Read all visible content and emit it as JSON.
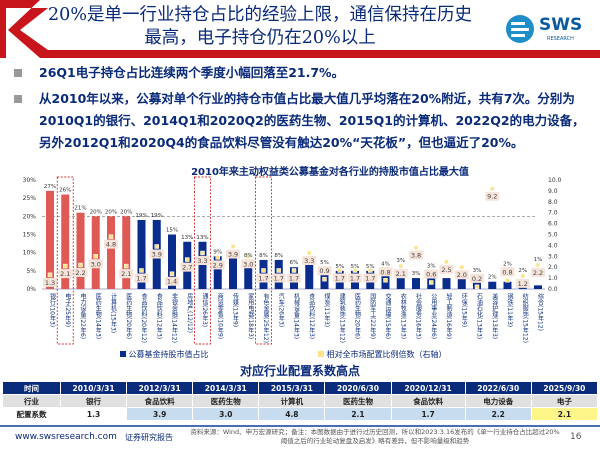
{
  "header": {
    "title": "20%是单一行业持仓占比的经验上限，通信保持在历史最高，电子持仓仍在20%以上",
    "logo_text": "SWS",
    "logo_sub": "RESEARCH"
  },
  "bullets": [
    "26Q1电子持仓占比连续两个季度小幅回落至21.7%。",
    "从2010年以来，公募对单个行业的持仓市值占比最大值几乎均落在20%附近，共有7次。分别为2010Q1的银行、2014Q1和2020Q2的医药生物、2015Q1的计算机、2022Q2的电力设备，另外2012Q1和2020Q4的食品饮料尽管没有触达20%“天花板”，但也逼近了20%。"
  ],
  "chart_data": {
    "type": "bar",
    "title": "2010年来主动权益类公募基金对各行业的持股市值占比最大值",
    "categories": [
      "银行(10年3)",
      "电子(25年9)",
      "电力设备(22年6)",
      "医药生物(14年3)",
      "计算机(15年3)",
      "医药生物(20年6)",
      "食品饮料(20年12)",
      "食品饮料(12年3)",
      "非银金融(14年12)",
      "房地产(12/12)",
      "通信(26年3)",
      "商贸零售(10年9)",
      "传媒(13年9)",
      "家用电器(18年3)",
      "有色金属(25年12)",
      "汽车(26年3)",
      "机械设备(14年3)",
      "食品饮料(12年3)",
      "煤炭(11年3)",
      "建筑装饰(13年12)",
      "医药生物(20年6)",
      "国防军工(22年9)",
      "交通运输(15年6)",
      "农林牧渔(13年3)",
      "社会服务(16年3)",
      "公用事业(24年6)",
      "轻工制造(16年9)",
      "环保(15年9)",
      "石油石化(13年3)",
      "美容护理(13年3)",
      "钢铁(11年3)",
      "纺织服饰(15年12)",
      "综合(15年12)"
    ],
    "series": [
      {
        "name": "公募基金持股市值占比",
        "axis": "left",
        "values": [
          27,
          26,
          21,
          20,
          20,
          20,
          19,
          19,
          15,
          13,
          13,
          9,
          10,
          8,
          8,
          8,
          6,
          7,
          5,
          5,
          5,
          5,
          4,
          3,
          3,
          3,
          3,
          3,
          3,
          2,
          2,
          2,
          1
        ],
        "labels": [
          "27%",
          "26%",
          "21%",
          "20%",
          "20%",
          "20%",
          "19%",
          "19%",
          "15%",
          "13%",
          "13%",
          "9%",
          "",
          "8%",
          "8%",
          "8%",
          "6%",
          "",
          "5%",
          "5%",
          "5%",
          "5%",
          "4%",
          "3%",
          "3%",
          "3%",
          "",
          "",
          "3%",
          "2%",
          "2%",
          "2%",
          "1%"
        ]
      },
      {
        "name": "相对全市场配置比例倍数（右轴）",
        "axis": "right",
        "values": [
          1.3,
          2.1,
          2.2,
          3.0,
          4.8,
          2.1,
          1.7,
          3.9,
          1.4,
          2.7,
          3.3,
          2.9,
          3.9,
          3.0,
          1.7,
          1.7,
          1.7,
          3.3,
          0.9,
          1.7,
          1.7,
          1.7,
          0.8,
          2.1,
          3.8,
          0.6,
          2.5,
          2.0,
          0.2,
          9.2,
          0.8,
          1.2,
          2.2
        ]
      }
    ],
    "highlighted": [
      "电子(25年9)",
      "通信(26年3)",
      "有色金属(25年12)"
    ],
    "ylim": [
      0,
      30
    ],
    "yticks": [
      "0%",
      "5%",
      "10%",
      "15%",
      "20%",
      "25%",
      "30%"
    ],
    "y2lim": [
      0,
      10
    ],
    "y2ticks": [
      "0.0",
      "1.0",
      "2.0",
      "3.0",
      "4.0",
      "5.0",
      "6.0",
      "7.0",
      "8.0",
      "9.0",
      "10.0"
    ],
    "reference_line": 20,
    "colors": {
      "above20": "#e05a55",
      "below20": "#0a2c8c",
      "ratio": "#fbe38a"
    },
    "legend_placement": "bottom"
  },
  "table": {
    "title": "对应行业配置系数高点",
    "rows": [
      [
        "时间",
        "2010/3/31",
        "2012/3/31",
        "2014/3/31",
        "2015/3/31",
        "2020/6/30",
        "2020/12/31",
        "2022/6/30",
        "2025/9/30"
      ],
      [
        "行业",
        "银行",
        "食品饮料",
        "医药生物",
        "计算机",
        "医药生物",
        "食品饮料",
        "电力设备",
        "电子"
      ],
      [
        "配置系数",
        "1.3",
        "3.9",
        "3.0",
        "4.8",
        "2.1",
        "1.7",
        "2.2",
        "2.1"
      ]
    ]
  },
  "footer": {
    "url": "www.swsresearch.com",
    "report": "证券研究报告",
    "source": "资料来源：Wind、申万宏源研究；备注：本图数据由于进行过历史回测，所以和2023.3.16发布的《单一行业持仓占比超过20%阈值之后的行业轮动复盘及启发》略有差异，但不影响量级和趋势",
    "page": "16"
  }
}
